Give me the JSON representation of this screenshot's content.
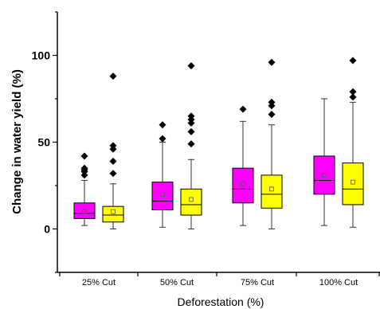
{
  "chart_data": {
    "type": "box",
    "xlabel": "Deforestation (%)",
    "ylabel": "Change in water yield (%)",
    "ylim": [
      -25,
      125
    ],
    "yticks": [
      0,
      50,
      100
    ],
    "grid": false,
    "categories": [
      "25% Cut",
      "50% Cut",
      "75% Cut",
      "100% Cut"
    ],
    "series": [
      {
        "color": "#ff00ff",
        "boxes": [
          {
            "whisker_low": 2,
            "q1": 6,
            "median": 9,
            "q3": 15,
            "whisker_high": 28,
            "mean": 10,
            "outliers": [
              31,
              33,
              34,
              35,
              42
            ]
          },
          {
            "whisker_low": 1,
            "q1": 11,
            "median": 16,
            "q3": 27,
            "whisker_high": 50,
            "mean": 20,
            "outliers": [
              52,
              60
            ]
          },
          {
            "whisker_low": 2,
            "q1": 15,
            "median": 23,
            "q3": 35,
            "whisker_high": 62,
            "mean": 26,
            "outliers": [
              69
            ]
          },
          {
            "whisker_low": 2,
            "q1": 20,
            "median": 28,
            "q3": 42,
            "whisker_high": 75,
            "mean": 31,
            "outliers": []
          }
        ]
      },
      {
        "color": "#ffff00",
        "boxes": [
          {
            "whisker_low": 0,
            "q1": 4,
            "median": 8,
            "q3": 13,
            "whisker_high": 26,
            "mean": 10,
            "outliers": [
              32,
              39,
              46,
              48,
              88
            ]
          },
          {
            "whisker_low": 0,
            "q1": 8,
            "median": 14,
            "q3": 23,
            "whisker_high": 40,
            "mean": 17,
            "outliers": [
              49,
              56,
              61,
              63,
              65,
              94
            ]
          },
          {
            "whisker_low": 0,
            "q1": 12,
            "median": 20,
            "q3": 31,
            "whisker_high": 60,
            "mean": 23,
            "outliers": [
              66,
              71,
              73,
              96
            ]
          },
          {
            "whisker_low": 1,
            "q1": 14,
            "median": 23,
            "q3": 38,
            "whisker_high": 73,
            "mean": 27,
            "outliers": [
              76,
              79,
              97
            ]
          }
        ]
      }
    ]
  }
}
